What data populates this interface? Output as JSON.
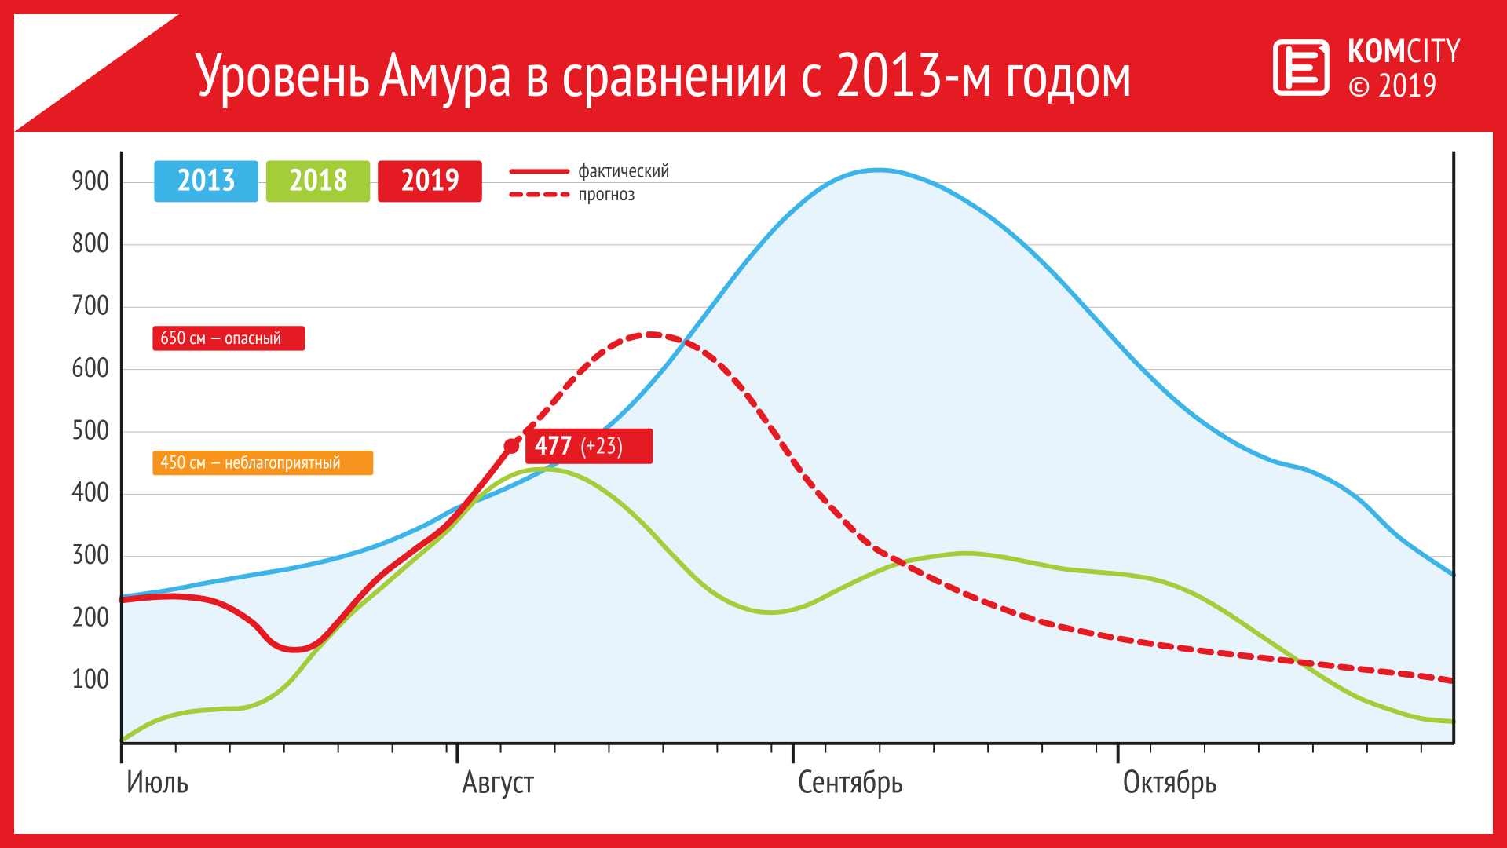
{
  "header": {
    "title": "Уровень Амура в сравнении с 2013-м годом",
    "brand_name_bold": "KOM",
    "brand_name_light": "CITY",
    "copyright": "© 2019"
  },
  "colors": {
    "frame": "#e51b24",
    "bg": "#ffffff",
    "grid": "#808080",
    "axis": "#1a1a1a",
    "text": "#3a3a3a",
    "blue": "#3cb4e7",
    "blue_fill": "#e8f4fb",
    "green": "#a3cd39",
    "red": "#e51b24",
    "orange": "#f7941e"
  },
  "chart": {
    "type": "line",
    "x_domain_days": [
      0,
      123
    ],
    "y_domain": [
      0,
      950
    ],
    "y_ticks": [
      100,
      200,
      300,
      400,
      500,
      600,
      700,
      800,
      900
    ],
    "x_major_ticks": [
      {
        "day": 0,
        "label": "Июль"
      },
      {
        "day": 31,
        "label": "Август"
      },
      {
        "day": 62,
        "label": "Сентябрь"
      },
      {
        "day": 92,
        "label": "Октябрь"
      }
    ],
    "x_minor_step_days": 5,
    "legend_years": [
      {
        "label": "2013",
        "color": "#3cb4e7"
      },
      {
        "label": "2018",
        "color": "#a3cd39"
      },
      {
        "label": "2019",
        "color": "#e51b24"
      }
    ],
    "line_legend": [
      {
        "label": "фактический",
        "style": "solid",
        "color": "#e51b24"
      },
      {
        "label": "прогноз",
        "style": "dashed",
        "color": "#e51b24"
      }
    ],
    "threshold_annotations": [
      {
        "value": 650,
        "text": "650 см — опасный",
        "color": "#e51b24"
      },
      {
        "value": 450,
        "text": "450 см — неблагоприятный",
        "color": "#f7941e"
      }
    ],
    "callout": {
      "day": 36,
      "value": 477,
      "delta": "+23",
      "label_main": "477",
      "label_sub": "(+23)",
      "color": "#e51b24"
    },
    "series": {
      "blue_2013": {
        "color": "#3cb4e7",
        "fill": "#e8f4fb",
        "width": 6,
        "points": [
          [
            0,
            235
          ],
          [
            4,
            245
          ],
          [
            8,
            258
          ],
          [
            12,
            270
          ],
          [
            16,
            282
          ],
          [
            20,
            298
          ],
          [
            24,
            320
          ],
          [
            28,
            350
          ],
          [
            31,
            378
          ],
          [
            34,
            398
          ],
          [
            38,
            430
          ],
          [
            42,
            470
          ],
          [
            46,
            525
          ],
          [
            50,
            600
          ],
          [
            54,
            690
          ],
          [
            58,
            780
          ],
          [
            62,
            855
          ],
          [
            66,
            905
          ],
          [
            70,
            920
          ],
          [
            74,
            905
          ],
          [
            78,
            870
          ],
          [
            82,
            820
          ],
          [
            86,
            755
          ],
          [
            90,
            680
          ],
          [
            94,
            605
          ],
          [
            98,
            540
          ],
          [
            102,
            490
          ],
          [
            106,
            455
          ],
          [
            110,
            435
          ],
          [
            114,
            395
          ],
          [
            118,
            330
          ],
          [
            123,
            270
          ]
        ]
      },
      "green_2018": {
        "color": "#a3cd39",
        "width": 6,
        "points": [
          [
            0,
            5
          ],
          [
            3,
            35
          ],
          [
            6,
            50
          ],
          [
            9,
            55
          ],
          [
            12,
            60
          ],
          [
            15,
            90
          ],
          [
            18,
            150
          ],
          [
            21,
            205
          ],
          [
            24,
            250
          ],
          [
            27,
            295
          ],
          [
            30,
            340
          ],
          [
            33,
            395
          ],
          [
            36,
            430
          ],
          [
            39,
            440
          ],
          [
            42,
            430
          ],
          [
            45,
            400
          ],
          [
            48,
            355
          ],
          [
            51,
            300
          ],
          [
            54,
            250
          ],
          [
            57,
            220
          ],
          [
            60,
            210
          ],
          [
            63,
            220
          ],
          [
            66,
            245
          ],
          [
            69,
            270
          ],
          [
            72,
            290
          ],
          [
            75,
            300
          ],
          [
            78,
            305
          ],
          [
            81,
            300
          ],
          [
            84,
            290
          ],
          [
            87,
            280
          ],
          [
            90,
            275
          ],
          [
            93,
            270
          ],
          [
            96,
            260
          ],
          [
            99,
            240
          ],
          [
            102,
            210
          ],
          [
            105,
            175
          ],
          [
            108,
            140
          ],
          [
            111,
            105
          ],
          [
            114,
            75
          ],
          [
            117,
            55
          ],
          [
            120,
            40
          ],
          [
            123,
            35
          ]
        ]
      },
      "red_actual": {
        "color": "#e51b24",
        "width": 8,
        "points": [
          [
            0,
            230
          ],
          [
            3,
            235
          ],
          [
            6,
            235
          ],
          [
            9,
            225
          ],
          [
            12,
            195
          ],
          [
            14,
            160
          ],
          [
            16,
            150
          ],
          [
            18,
            160
          ],
          [
            20,
            195
          ],
          [
            22,
            235
          ],
          [
            24,
            270
          ],
          [
            27,
            310
          ],
          [
            30,
            350
          ],
          [
            33,
            410
          ],
          [
            36,
            477
          ]
        ]
      },
      "red_forecast": {
        "color": "#e51b24",
        "width": 8,
        "dash": "14 12",
        "points": [
          [
            36,
            477
          ],
          [
            39,
            530
          ],
          [
            42,
            590
          ],
          [
            45,
            635
          ],
          [
            48,
            655
          ],
          [
            51,
            650
          ],
          [
            54,
            625
          ],
          [
            57,
            575
          ],
          [
            60,
            505
          ],
          [
            63,
            430
          ],
          [
            66,
            370
          ],
          [
            69,
            320
          ],
          [
            72,
            290
          ],
          [
            76,
            255
          ],
          [
            80,
            225
          ],
          [
            85,
            195
          ],
          [
            90,
            175
          ],
          [
            95,
            160
          ],
          [
            100,
            148
          ],
          [
            105,
            138
          ],
          [
            110,
            128
          ],
          [
            115,
            118
          ],
          [
            120,
            108
          ],
          [
            123,
            100
          ]
        ]
      }
    }
  }
}
